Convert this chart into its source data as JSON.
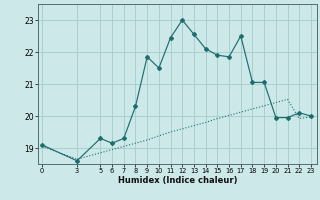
{
  "xlabel": "Humidex (Indice chaleur)",
  "background_color": "#cce8e8",
  "grid_color": "#aacfcf",
  "line_color": "#1e6e6e",
  "x_ticks": [
    0,
    3,
    5,
    6,
    7,
    8,
    9,
    10,
    11,
    12,
    13,
    14,
    15,
    16,
    17,
    18,
    19,
    20,
    21,
    22,
    23
  ],
  "y_ticks": [
    19,
    20,
    21,
    22,
    23
  ],
  "ylim": [
    18.5,
    23.5
  ],
  "xlim": [
    -0.3,
    23.5
  ],
  "line1_x": [
    0,
    3,
    5,
    6,
    7,
    8,
    9,
    10,
    11,
    12,
    13,
    14,
    15,
    16,
    17,
    18,
    19,
    20,
    21,
    22,
    23
  ],
  "line1_y": [
    19.1,
    18.6,
    19.3,
    19.15,
    19.3,
    20.3,
    21.85,
    21.5,
    22.45,
    23.0,
    22.55,
    22.1,
    21.9,
    21.85,
    22.5,
    21.05,
    21.05,
    19.95,
    19.95,
    20.1,
    20.0
  ],
  "line2_x": [
    0,
    3,
    5,
    6,
    7,
    8,
    9,
    10,
    11,
    12,
    13,
    14,
    15,
    16,
    17,
    18,
    19,
    20,
    21,
    22,
    23
  ],
  "line2_y": [
    19.05,
    18.65,
    18.85,
    18.95,
    19.05,
    19.15,
    19.25,
    19.38,
    19.5,
    19.6,
    19.7,
    19.8,
    19.92,
    20.02,
    20.12,
    20.22,
    20.32,
    20.42,
    20.52,
    19.92,
    19.97
  ]
}
